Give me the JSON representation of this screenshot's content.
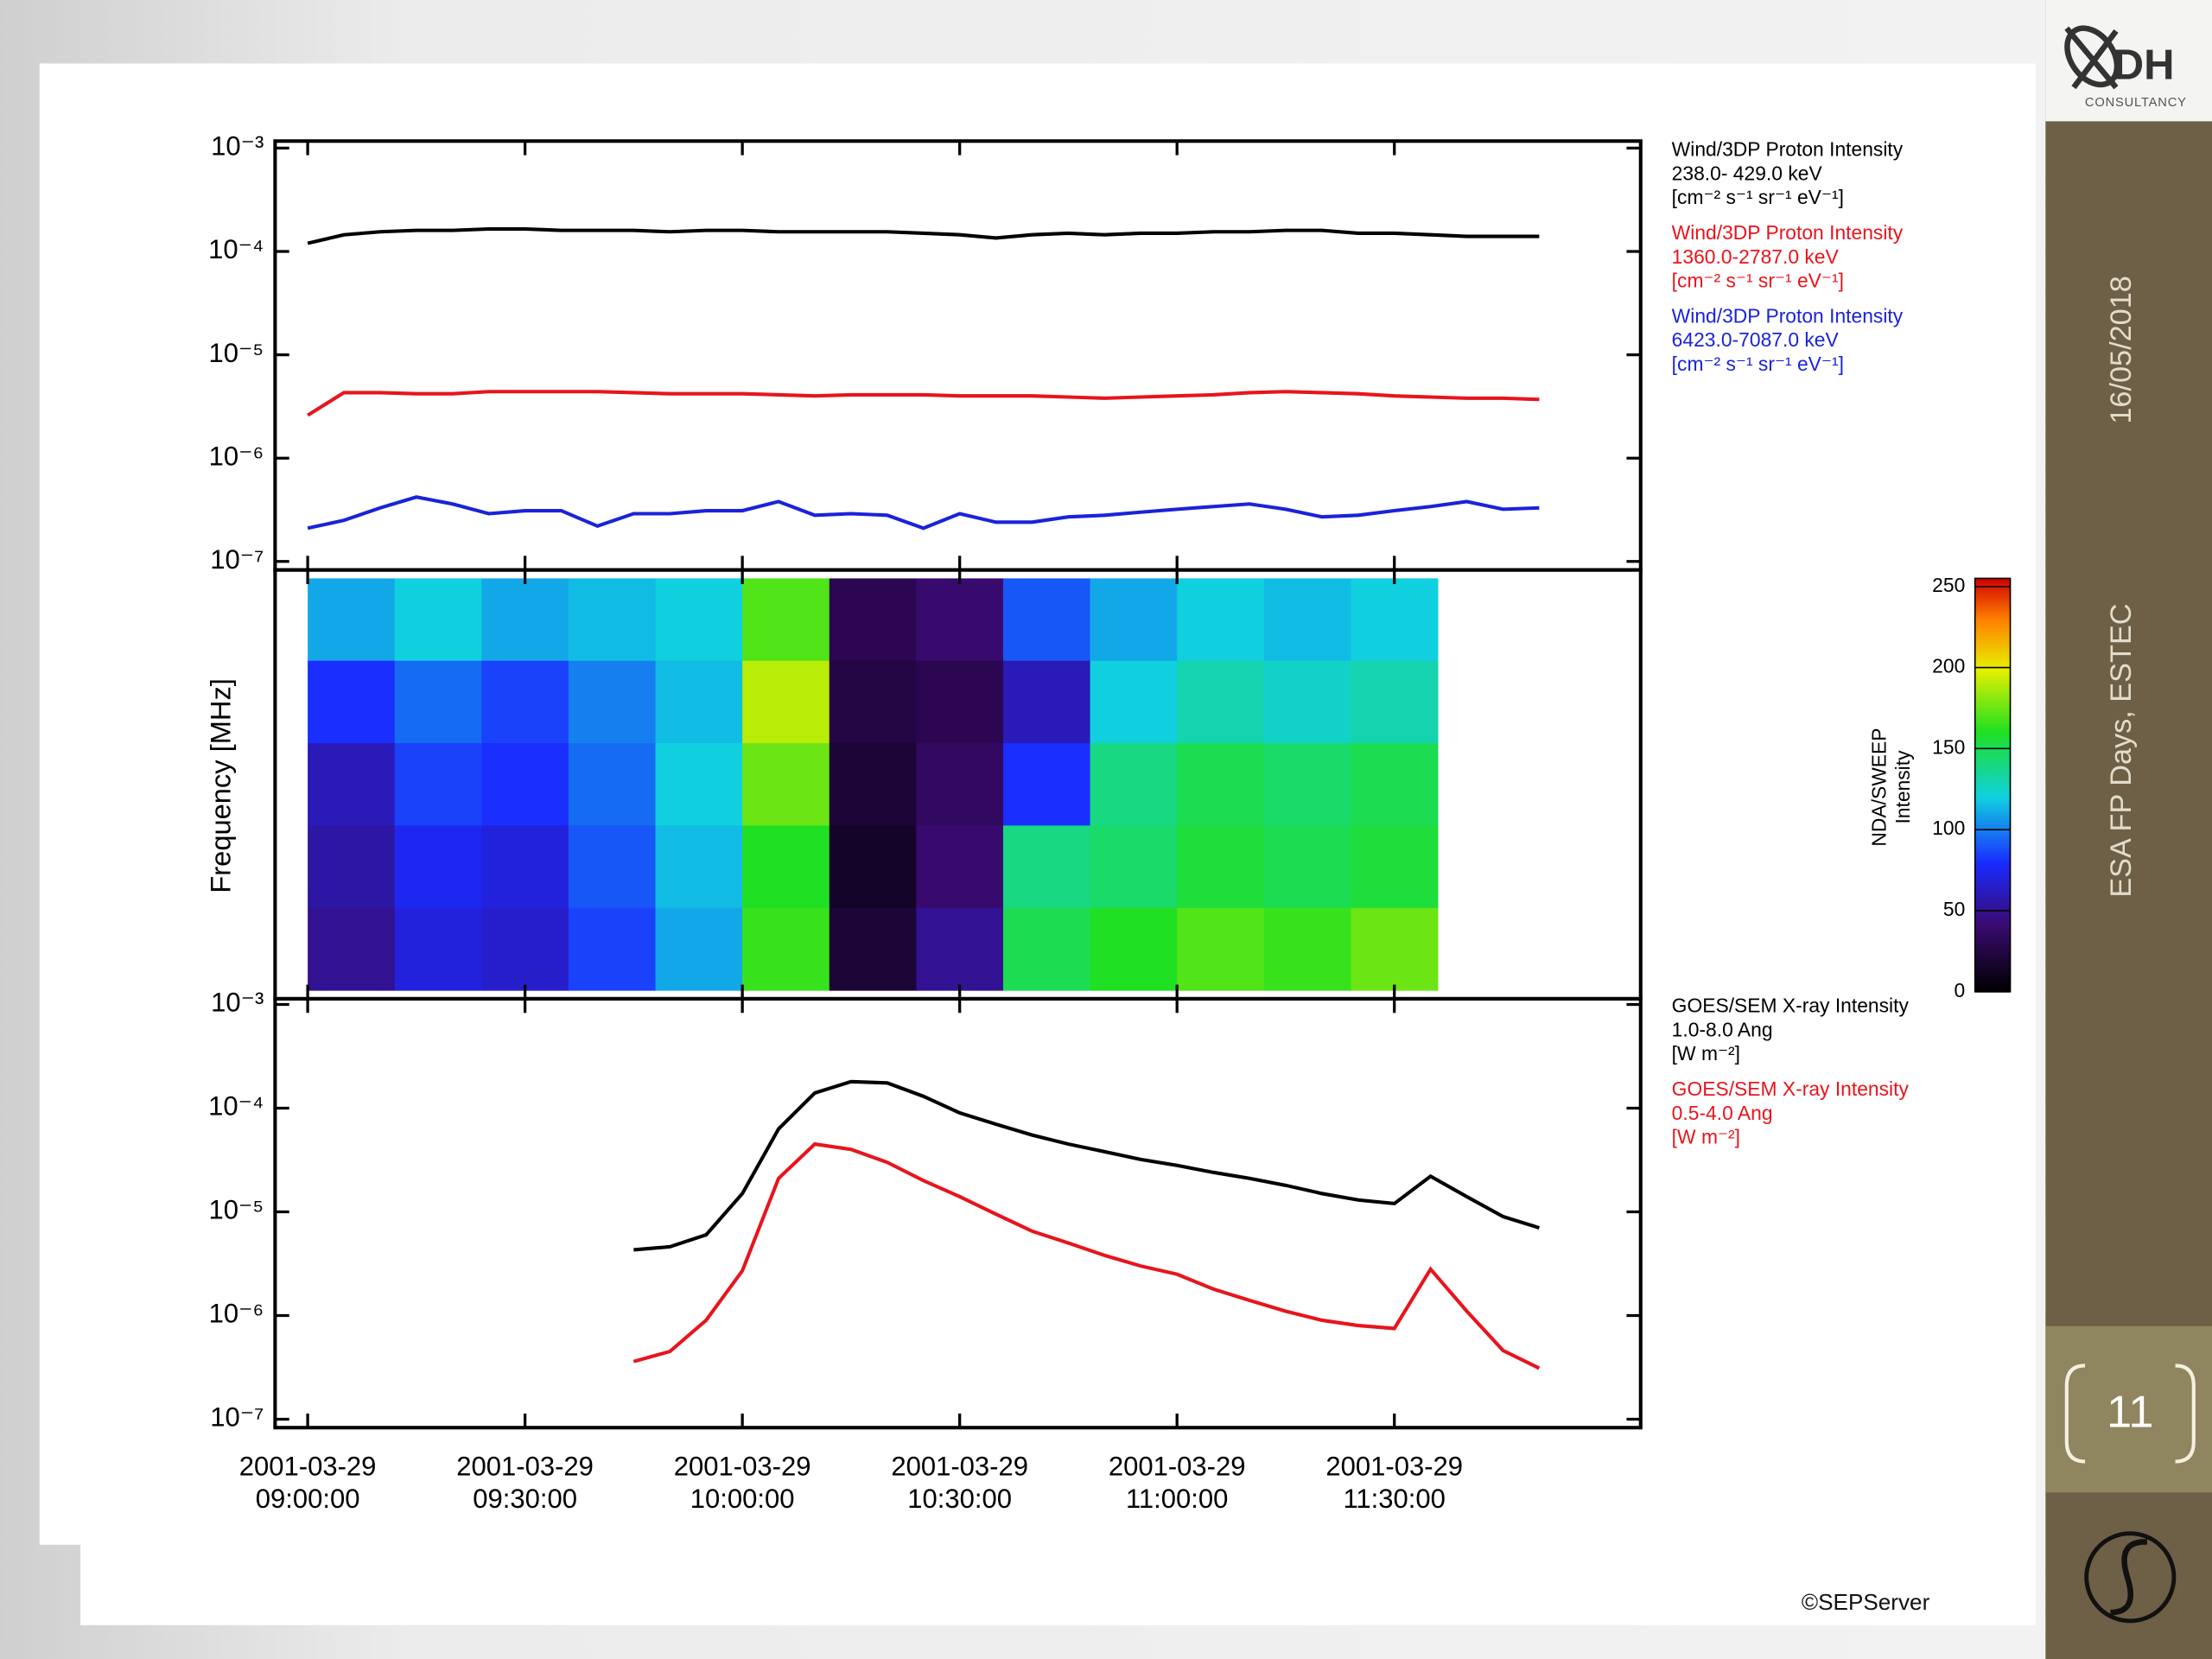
{
  "slide": {
    "date": "16/05/2018",
    "event": "ESA FP Days, ESTEC",
    "page": "11",
    "credit": "©SEPServer",
    "logo": "DH",
    "logo_sub": "CONSULTANCY"
  },
  "chart_data": [
    {
      "type": "line",
      "log_scale": true,
      "x": [
        "2001-03-29 09:00:00",
        "2001-03-29 09:05:00",
        "2001-03-29 09:10:00",
        "2001-03-29 09:15:00",
        "2001-03-29 09:20:00",
        "2001-03-29 09:25:00",
        "2001-03-29 09:30:00",
        "2001-03-29 09:35:00",
        "2001-03-29 09:40:00",
        "2001-03-29 09:45:00",
        "2001-03-29 09:50:00",
        "2001-03-29 09:55:00",
        "2001-03-29 10:00:00",
        "2001-03-29 10:05:00",
        "2001-03-29 10:10:00",
        "2001-03-29 10:15:00",
        "2001-03-29 10:20:00",
        "2001-03-29 10:25:00",
        "2001-03-29 10:30:00",
        "2001-03-29 10:35:00",
        "2001-03-29 10:40:00",
        "2001-03-29 10:45:00",
        "2001-03-29 10:50:00",
        "2001-03-29 10:55:00",
        "2001-03-29 11:00:00",
        "2001-03-29 11:05:00",
        "2001-03-29 11:10:00",
        "2001-03-29 11:15:00",
        "2001-03-29 11:20:00",
        "2001-03-29 11:25:00",
        "2001-03-29 11:30:00",
        "2001-03-29 11:35:00",
        "2001-03-29 11:40:00",
        "2001-03-29 11:45:00",
        "2001-03-29 11:50:00"
      ],
      "xlim": [
        "2001-03-29 08:55:30",
        "2001-03-29 12:04:00"
      ],
      "ylim": [
        1e-07,
        0.001
      ],
      "yticks": [
        {
          "value": 0.001,
          "label": "10⁻³"
        },
        {
          "value": 0.0001,
          "label": "10⁻⁴"
        },
        {
          "value": 1e-05,
          "label": "10⁻⁵"
        },
        {
          "value": 1e-06,
          "label": "10⁻⁶"
        },
        {
          "value": 1e-07,
          "label": "10⁻⁷"
        }
      ],
      "series": [
        {
          "name": "Wind/3DP Proton Intensity",
          "band": " 238.0- 429.0 keV",
          "unit": "[cm⁻² s⁻¹ sr⁻¹ eV⁻¹]",
          "color": "#000000",
          "values": [
            0.00012,
            0.000145,
            0.000155,
            0.00016,
            0.00016,
            0.000165,
            0.000165,
            0.00016,
            0.00016,
            0.00016,
            0.000155,
            0.00016,
            0.00016,
            0.000155,
            0.000155,
            0.000155,
            0.000155,
            0.00015,
            0.000145,
            0.000135,
            0.000145,
            0.00015,
            0.000145,
            0.00015,
            0.00015,
            0.000155,
            0.000155,
            0.00016,
            0.00016,
            0.00015,
            0.00015,
            0.000145,
            0.00014,
            0.00014,
            0.00014
          ]
        },
        {
          "name": "Wind/3DP Proton Intensity",
          "band": "1360.0-2787.0 keV",
          "unit": "[cm⁻² s⁻¹ sr⁻¹ eV⁻¹]",
          "color": "#e8141c",
          "values": [
            2.6e-06,
            4.3e-06,
            4.3e-06,
            4.2e-06,
            4.2e-06,
            4.4e-06,
            4.4e-06,
            4.4e-06,
            4.4e-06,
            4.3e-06,
            4.2e-06,
            4.2e-06,
            4.2e-06,
            4.1e-06,
            4e-06,
            4.1e-06,
            4.1e-06,
            4.1e-06,
            4e-06,
            4e-06,
            4e-06,
            3.9e-06,
            3.8e-06,
            3.9e-06,
            4e-06,
            4.1e-06,
            4.3e-06,
            4.4e-06,
            4.3e-06,
            4.2e-06,
            4e-06,
            3.9e-06,
            3.8e-06,
            3.8e-06,
            3.7e-06
          ]
        },
        {
          "name": "Wind/3DP Proton Intensity",
          "band": "6423.0-7087.0 keV",
          "unit": "[cm⁻² s⁻¹ sr⁻¹ eV⁻¹]",
          "color": "#1a23d8",
          "values": [
            2.1e-07,
            2.5e-07,
            3.3e-07,
            4.2e-07,
            3.6e-07,
            2.9e-07,
            3.1e-07,
            3.1e-07,
            2.2e-07,
            2.9e-07,
            2.9e-07,
            3.1e-07,
            3.1e-07,
            3.8e-07,
            2.8e-07,
            2.9e-07,
            2.8e-07,
            2.1e-07,
            2.9e-07,
            2.4e-07,
            2.4e-07,
            2.7e-07,
            2.8e-07,
            3e-07,
            3.2e-07,
            3.4e-07,
            3.6e-07,
            3.2e-07,
            2.7e-07,
            2.8e-07,
            3.1e-07,
            3.4e-07,
            3.8e-07,
            3.2e-07,
            3.3e-07
          ]
        }
      ]
    },
    {
      "type": "heatmap",
      "ylabel": "Frequency [MHz]",
      "xlim": [
        "2001-03-29 08:55:30",
        "2001-03-29 12:04:00"
      ],
      "x_bins": [
        "2001-03-29 09:00:00",
        "2001-03-29 09:12:00",
        "2001-03-29 09:24:00",
        "2001-03-29 09:36:00",
        "2001-03-29 09:48:00",
        "2001-03-29 10:00:00",
        "2001-03-29 10:12:00",
        "2001-03-29 10:24:00",
        "2001-03-29 10:36:00",
        "2001-03-29 10:48:00",
        "2001-03-29 11:00:00",
        "2001-03-29 11:12:00",
        "2001-03-29 11:24:00",
        "2001-03-29 11:36:00"
      ],
      "values": [
        [
          110,
          120,
          110,
          115,
          120,
          170,
          30,
          40,
          90,
          110,
          120,
          115,
          120
        ],
        [
          80,
          95,
          85,
          100,
          115,
          190,
          25,
          30,
          60,
          120,
          130,
          125,
          130
        ],
        [
          60,
          85,
          80,
          95,
          120,
          175,
          20,
          35,
          80,
          140,
          150,
          145,
          150
        ],
        [
          55,
          75,
          70,
          90,
          115,
          160,
          15,
          40,
          140,
          145,
          155,
          150,
          155
        ],
        [
          50,
          70,
          65,
          85,
          110,
          165,
          20,
          50,
          150,
          160,
          170,
          165,
          175
        ]
      ],
      "colorbar_title": "NDA/SWEEP",
      "colorbar_subtitle": "Intensity",
      "clim": [
        0,
        255
      ],
      "cticks": [
        0,
        50,
        100,
        150,
        200,
        250
      ]
    },
    {
      "type": "line",
      "log_scale": true,
      "x": [
        "2001-03-29 09:45:00",
        "2001-03-29 09:50:00",
        "2001-03-29 09:55:00",
        "2001-03-29 10:00:00",
        "2001-03-29 10:05:00",
        "2001-03-29 10:10:00",
        "2001-03-29 10:15:00",
        "2001-03-29 10:20:00",
        "2001-03-29 10:25:00",
        "2001-03-29 10:30:00",
        "2001-03-29 10:35:00",
        "2001-03-29 10:40:00",
        "2001-03-29 10:45:00",
        "2001-03-29 10:50:00",
        "2001-03-29 10:55:00",
        "2001-03-29 11:00:00",
        "2001-03-29 11:05:00",
        "2001-03-29 11:10:00",
        "2001-03-29 11:15:00",
        "2001-03-29 11:20:00",
        "2001-03-29 11:25:00",
        "2001-03-29 11:30:00",
        "2001-03-29 11:35:00",
        "2001-03-29 11:40:00",
        "2001-03-29 11:45:00",
        "2001-03-29 11:50:00"
      ],
      "xlim": [
        "2001-03-29 08:55:30",
        "2001-03-29 12:04:00"
      ],
      "xticks": [
        "2001-03-29 09:00:00",
        "2001-03-29 09:30:00",
        "2001-03-29 10:00:00",
        "2001-03-29 10:30:00",
        "2001-03-29 11:00:00",
        "2001-03-29 11:30:00"
      ],
      "ylim": [
        1e-07,
        0.001
      ],
      "yticks": [
        {
          "value": 0.001,
          "label": "10⁻³"
        },
        {
          "value": 0.0001,
          "label": "10⁻⁴"
        },
        {
          "value": 1e-05,
          "label": "10⁻⁵"
        },
        {
          "value": 1e-06,
          "label": "10⁻⁶"
        },
        {
          "value": 1e-07,
          "label": "10⁻⁷"
        }
      ],
      "series": [
        {
          "name": "GOES/SEM X-ray Intensity",
          "band": "1.0-8.0 Ang",
          "unit": "[W m⁻²]",
          "color": "#000000",
          "values": [
            4.3e-06,
            4.6e-06,
            6e-06,
            1.5e-05,
            6.3e-05,
            0.00014,
            0.00018,
            0.000175,
            0.00013,
            9e-05,
            7e-05,
            5.5e-05,
            4.5e-05,
            3.8e-05,
            3.2e-05,
            2.8e-05,
            2.4e-05,
            2.1e-05,
            1.8e-05,
            1.5e-05,
            1.3e-05,
            1.2e-05,
            2.2e-05,
            1.4e-05,
            9e-06,
            7e-06
          ]
        },
        {
          "name": "GOES/SEM X-ray Intensity",
          "band": "0.5-4.0 Ang",
          "unit": "[W m⁻²]",
          "color": "#e8141c",
          "values": [
            3.6e-07,
            4.5e-07,
            9e-07,
            2.7e-06,
            2.1e-05,
            4.5e-05,
            4e-05,
            3e-05,
            2e-05,
            1.4e-05,
            9.5e-06,
            6.5e-06,
            5e-06,
            3.8e-06,
            3e-06,
            2.5e-06,
            1.8e-06,
            1.4e-06,
            1.1e-06,
            9e-07,
            8e-07,
            7.5e-07,
            2.8e-06,
            1.1e-06,
            4.6e-07,
            3.1e-07
          ]
        }
      ]
    }
  ]
}
